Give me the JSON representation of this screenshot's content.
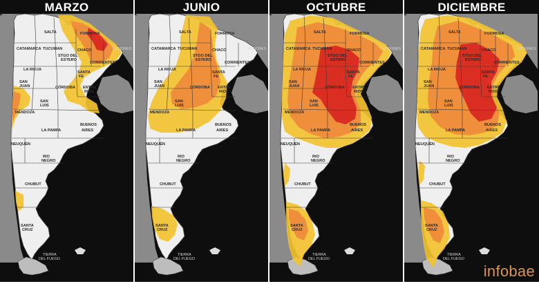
{
  "panels": [
    {
      "title": "MARZO",
      "severity": "low"
    },
    {
      "title": "JUNIO",
      "severity": "medium"
    },
    {
      "title": "OCTUBRE",
      "severity": "high"
    },
    {
      "title": "DICIEMBRE",
      "severity": "high"
    }
  ],
  "provinces": {
    "formosa": "FORMOSA",
    "salta": "SALTA",
    "chaco": "CHACO",
    "misiones": "MISIONES",
    "catamarca": "CATAMARCA",
    "tucuman": "TUCUMAN",
    "corrientes": "CORRIENTES",
    "stgo_line1": "STGO DEL",
    "stgo_line2": "ESTERO",
    "la_rioja": "LA RIOJA",
    "santa_fe_1": "SANTA",
    "santa_fe_2": "FE",
    "san_juan_1": "SAN",
    "san_juan_2": "JUAN",
    "cordoba": "CÓRDOBA",
    "entre_rios_1": "ENTRE",
    "entre_rios_2": "RIOS",
    "san_luis_1": "SAN",
    "san_luis_2": "LUIS",
    "mendoza": "MENDOZA",
    "la_pampa": "LA PAMPA",
    "buenos_aires_1": "BUENOS",
    "buenos_aires_2": "AIRES",
    "neuquen": "NEUQUÉN",
    "rio_negro_1": "RIO",
    "rio_negro_2": "NEGRO",
    "chubut": "CHUBUT",
    "santa_cruz_1": "SANTA",
    "santa_cruz_2": "CRUZ",
    "tierra_1": "TIERRA",
    "tierra_2": "DEL FUEGO"
  },
  "colors": {
    "land": "#efefef",
    "neighbor": "#8a8a8a",
    "sea": "#0e0e0e",
    "yellow": "#f2c230",
    "orange": "#ef8a3c",
    "red": "#d7261f"
  },
  "brand": "infobae"
}
